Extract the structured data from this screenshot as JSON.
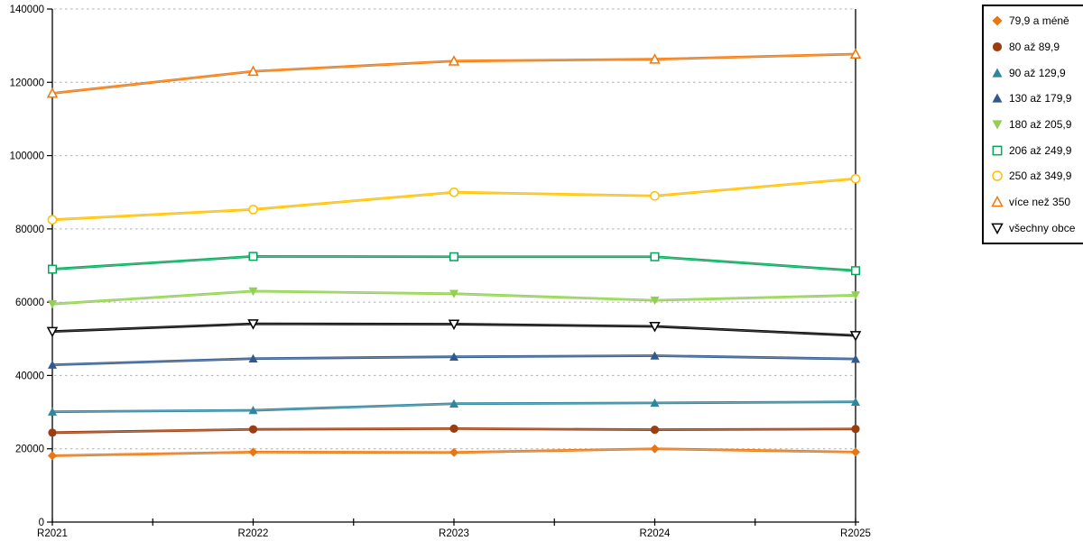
{
  "chart_data": {
    "type": "line",
    "title": "",
    "xlabel": "",
    "ylabel": "",
    "x": [
      "R2021",
      "R2022",
      "R2023",
      "R2024",
      "R2025"
    ],
    "ylim": [
      0,
      140000
    ],
    "ytick_step": 20000,
    "yticks": [
      "0",
      "20000",
      "40000",
      "60000",
      "80000",
      "100000",
      "120000",
      "140000"
    ],
    "grid": "horizontal-dashed",
    "legend_position": "right",
    "series": [
      {
        "name": "79,9 a méně",
        "color": "#E87613",
        "marker": "diamond-filled",
        "values": [
          18100,
          19100,
          19000,
          20000,
          19100
        ]
      },
      {
        "name": "80 až 89,9",
        "color": "#9C3D10",
        "marker": "circle-filled",
        "values": [
          24400,
          25300,
          25500,
          25200,
          25400
        ]
      },
      {
        "name": "90 až 129,9",
        "color": "#31859C",
        "marker": "triangle-up-filled",
        "values": [
          30100,
          30500,
          32300,
          32500,
          32800
        ]
      },
      {
        "name": "130 až 179,9",
        "color": "#32598E",
        "marker": "triangle-up-filled",
        "values": [
          42900,
          44600,
          45100,
          45400,
          44500
        ]
      },
      {
        "name": "180 až 205,9",
        "color": "#92D050",
        "marker": "triangle-down-filled",
        "values": [
          59500,
          63000,
          62300,
          60500,
          61900
        ]
      },
      {
        "name": "206 až 249,9",
        "color": "#00A859",
        "marker": "square-hollow",
        "values": [
          69000,
          72500,
          72400,
          72400,
          68600
        ]
      },
      {
        "name": "250 až 349,9",
        "color": "#FFC000",
        "marker": "circle-hollow",
        "values": [
          82500,
          85300,
          90000,
          89000,
          93700
        ]
      },
      {
        "name": "více než 350",
        "color": "#F0780E",
        "marker": "triangle-up-hollow",
        "values": [
          117000,
          123000,
          125800,
          126300,
          127700
        ]
      },
      {
        "name": "všechny obce",
        "color": "#000000",
        "marker": "triangle-down-hollow",
        "values": [
          52000,
          54100,
          54000,
          53400,
          50900
        ]
      }
    ]
  },
  "axes": {
    "axis_color": "#000000",
    "gridline_color": "#B0B0B0"
  },
  "legend": {
    "border_color": "#000000",
    "background": "#FFFFFF"
  }
}
